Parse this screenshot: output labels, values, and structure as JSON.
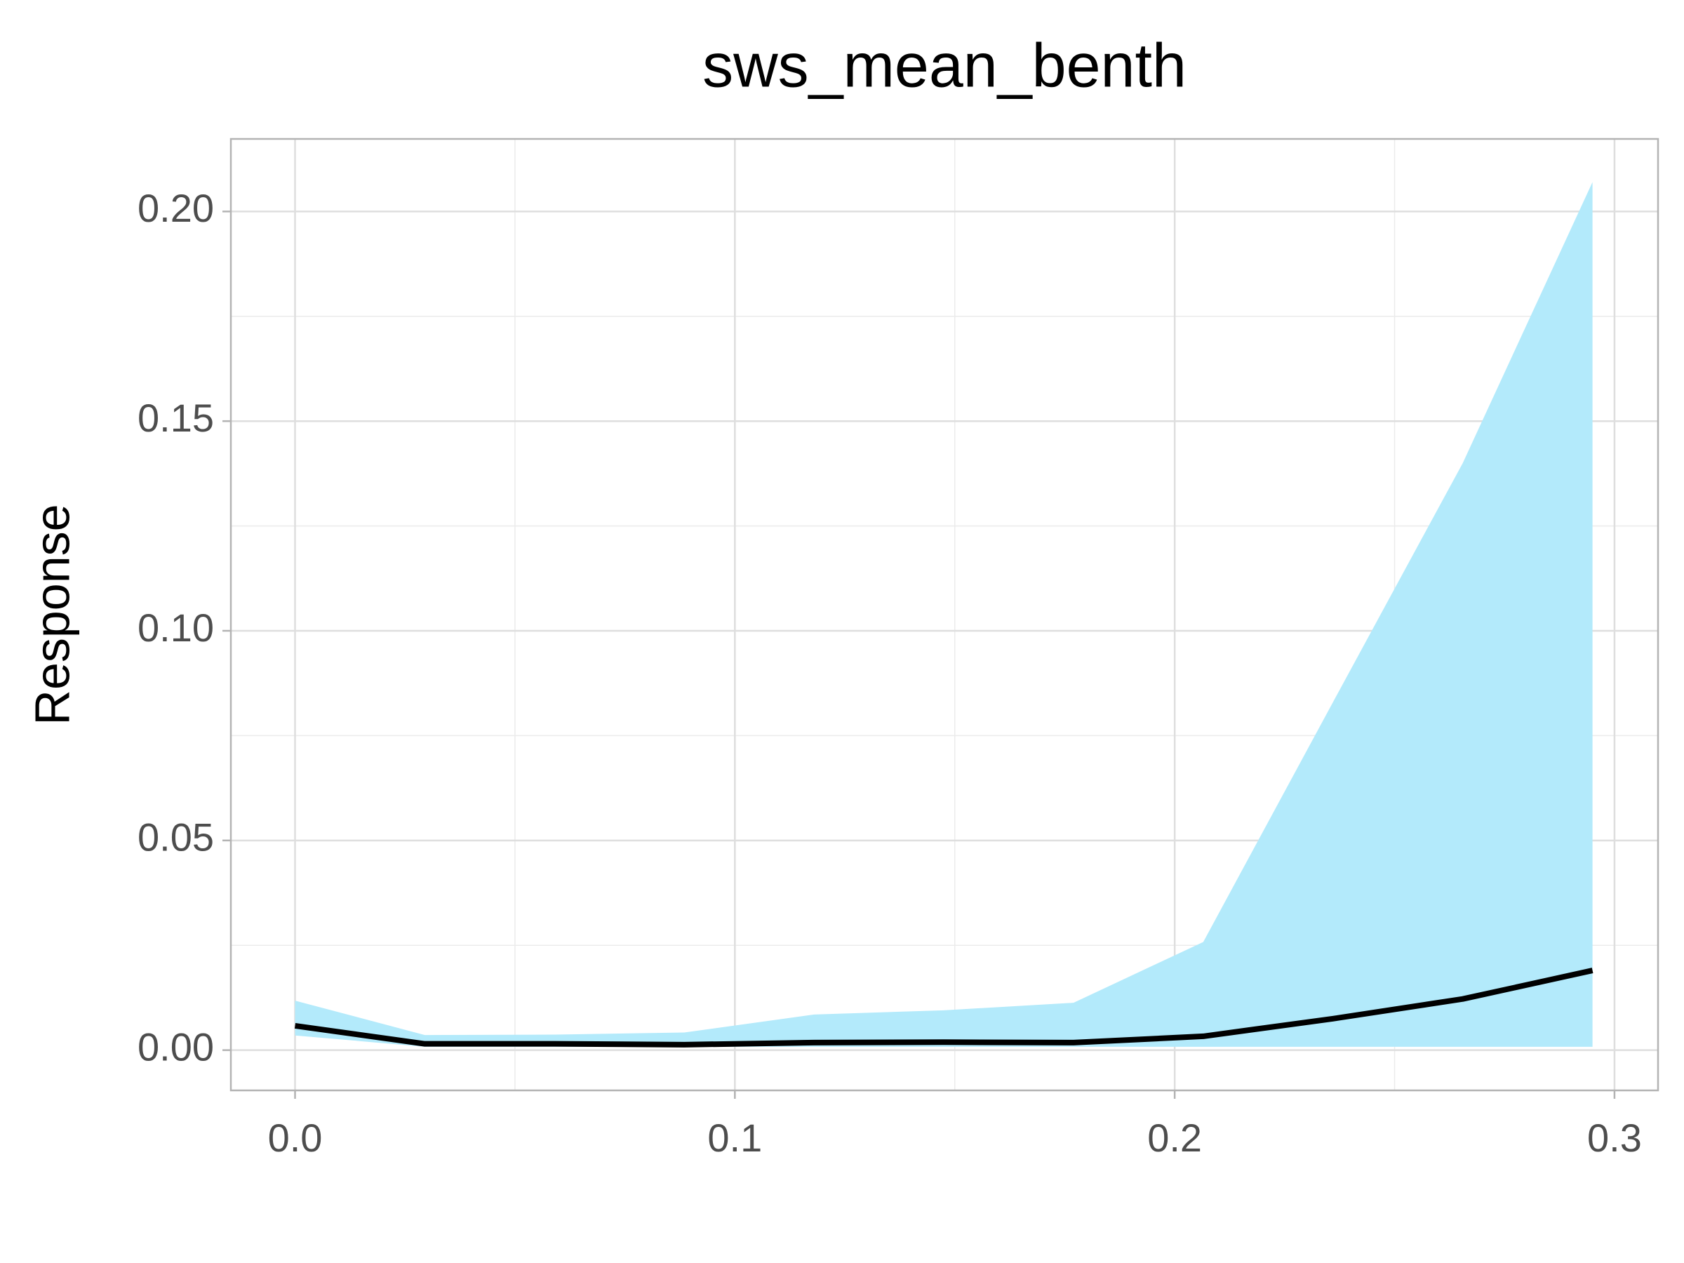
{
  "chart_data": {
    "type": "line",
    "title": "sws_mean_benth",
    "y_label": "Response",
    "x": [
      0,
      0.0295,
      0.059,
      0.0885,
      0.118,
      0.1475,
      0.177,
      0.2065,
      0.236,
      0.2655,
      0.295
    ],
    "values": [
      0.0058,
      0.0015,
      0.0015,
      0.0013,
      0.0018,
      0.0019,
      0.0018,
      0.0033,
      0.0075,
      0.0122,
      0.019
    ],
    "upper": [
      0.0118,
      0.0036,
      0.0037,
      0.0042,
      0.0085,
      0.0095,
      0.0113,
      0.0258,
      0.083,
      0.14,
      0.207
    ],
    "lower": [
      0.0035,
      0.0008,
      0.0008,
      0.0008,
      0.0008,
      0.0008,
      0.0008,
      0.0008,
      0.0008,
      0.0008,
      0.0008
    ],
    "color": "#000000",
    "band_color": "#b3eafb",
    "xlim": [
      -0.0146,
      0.3099
    ],
    "ylim": [
      -0.0096,
      0.2173
    ],
    "xticks": [
      {
        "value": 0,
        "label": "0.0"
      },
      0.1,
      0.2,
      0.3
    ],
    "yticks": [
      {
        "value": 0,
        "label": "0.00"
      },
      0.05,
      {
        "value": 0.1,
        "label": "0.10"
      },
      0.15,
      {
        "value": 0.2,
        "label": "0.20"
      }
    ],
    "x_minor_grid": [
      0.05,
      0.15,
      0.25
    ],
    "y_minor_grid": [
      0.025,
      0.075,
      0.125,
      0.175
    ],
    "grid": true
  }
}
